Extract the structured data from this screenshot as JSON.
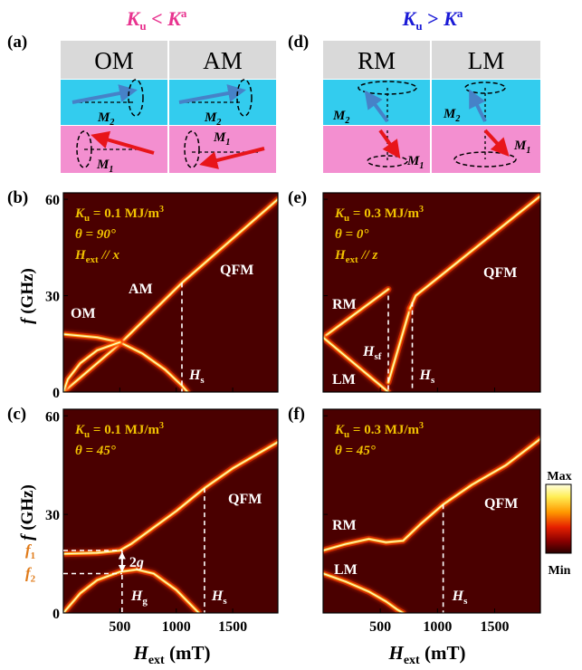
{
  "figure": {
    "left_condition": {
      "text": "K",
      "sub": "u",
      "rel": " < ",
      "text2": "K",
      "sup": "a"
    },
    "right_condition": {
      "text": "K",
      "sub": "u",
      "rel": " > ",
      "text2": "K",
      "sup": "a"
    },
    "colors": {
      "condition_left": "#e8338f",
      "condition_right": "#1a1ad6",
      "header_gray": "#d9d9d9",
      "upper_layer": "#33ccee",
      "lower_layer": "#f38fd0",
      "arrow_blue": "#4682c8",
      "arrow_red": "#e8151a",
      "annotation_yellow": "#f2c200",
      "plot_background": "#4a0000"
    }
  },
  "panels": {
    "a": {
      "label": "(a)",
      "modes": [
        {
          "name": "OM",
          "upper_moment": "M",
          "upper_sub": "2",
          "lower_moment": "M",
          "lower_sub": "1"
        },
        {
          "name": "AM",
          "upper_moment": "M",
          "upper_sub": "2",
          "lower_moment": "M",
          "lower_sub": "1"
        }
      ]
    },
    "d": {
      "label": "(d)",
      "modes": [
        {
          "name": "RM",
          "upper_moment": "M",
          "upper_sub": "2",
          "lower_moment": "M",
          "lower_sub": "1"
        },
        {
          "name": "LM",
          "upper_moment": "M",
          "upper_sub": "2",
          "lower_moment": "M",
          "lower_sub": "1"
        }
      ]
    },
    "b": {
      "label": "(b)",
      "params": [
        "K",
        "θ = 90°",
        "H"
      ],
      "ku": "0.1 MJ/m",
      "ku_exp": "3",
      "theta": "θ = 90°",
      "field_dir": " // x"
    },
    "e": {
      "label": "(e)",
      "ku": "0.3 MJ/m",
      "ku_exp": "3",
      "theta": "θ = 0°",
      "field_dir": " // z"
    },
    "c": {
      "label": "(c)",
      "ku": "0.1 MJ/m",
      "ku_exp": "3",
      "theta": "θ = 45°"
    },
    "f": {
      "label": "(f)",
      "ku": "0.3 MJ/m",
      "ku_exp": "3",
      "theta": "θ = 45°"
    }
  },
  "chart_data": [
    {
      "panel": "b",
      "type": "heatmap",
      "ylabel": "f (GHz)",
      "xlim": [
        0,
        1900
      ],
      "ylim": [
        0,
        62
      ],
      "yticks": [
        0,
        30,
        60
      ],
      "annotations": [
        "OM",
        "AM",
        "QFM",
        "H_s"
      ],
      "lines": [
        {
          "name": "QFM",
          "x": [
            0,
            500,
            1050,
            1900
          ],
          "y": [
            0,
            15,
            34,
            60
          ]
        },
        {
          "name": "OM",
          "x": [
            0,
            300,
            500,
            700,
            900,
            1050,
            1100
          ],
          "y": [
            18,
            17,
            15.5,
            12,
            7,
            2,
            0
          ]
        },
        {
          "name": "AM_low",
          "x": [
            0,
            40,
            150,
            300,
            500
          ],
          "y": [
            0,
            4,
            9,
            13,
            15.5
          ]
        }
      ],
      "markers": [
        {
          "label": "H_s",
          "x": 1050
        }
      ]
    },
    {
      "panel": "e",
      "type": "heatmap",
      "xlim": [
        0,
        1900
      ],
      "ylim": [
        0,
        62
      ],
      "yticks": [
        0,
        30,
        60
      ],
      "annotations": [
        "RM",
        "LM",
        "QFM",
        "H_sf",
        "H_s"
      ],
      "lines": [
        {
          "name": "RM",
          "x": [
            0,
            570
          ],
          "y": [
            17,
            32
          ]
        },
        {
          "name": "LM",
          "x": [
            0,
            570
          ],
          "y": [
            17,
            0
          ]
        },
        {
          "name": "mid",
          "x": [
            570,
            760
          ],
          "y": [
            3,
            26
          ]
        },
        {
          "name": "QFM",
          "x": [
            760,
            810,
            1900
          ],
          "y": [
            26,
            30,
            61
          ]
        }
      ],
      "markers": [
        {
          "label": "H_sf",
          "x": 570
        },
        {
          "label": "H_s",
          "x": 780
        }
      ]
    },
    {
      "panel": "c",
      "type": "heatmap",
      "ylabel": "f (GHz)",
      "xlabel": "H_ext (mT)",
      "xlim": [
        0,
        1900
      ],
      "ylim": [
        0,
        62
      ],
      "xticks": [
        500,
        1000,
        1500
      ],
      "yticks": [
        0,
        30,
        60
      ],
      "annotations": [
        "QFM",
        "f_1",
        "f_2",
        "2g",
        "H_g",
        "H_s"
      ],
      "lines": [
        {
          "name": "upper",
          "x": [
            0,
            300,
            500,
            600,
            800,
            1000,
            1250,
            1500,
            1900
          ],
          "y": [
            18,
            18.3,
            19,
            21,
            26,
            31,
            38,
            44,
            52
          ]
        },
        {
          "name": "lower",
          "x": [
            0,
            150,
            300,
            500,
            650,
            800,
            1000,
            1200
          ],
          "y": [
            0,
            6,
            10,
            12.5,
            13.2,
            12,
            7,
            0
          ]
        }
      ],
      "markers": [
        {
          "label": "H_g",
          "x": 520
        },
        {
          "label": "H_s",
          "x": 1250
        }
      ],
      "gap": {
        "f1": 19,
        "f2": 12,
        "label": "2g"
      }
    },
    {
      "panel": "f",
      "type": "heatmap",
      "xlabel": "H_ext (mT)",
      "xlim": [
        0,
        1900
      ],
      "ylim": [
        0,
        62
      ],
      "xticks": [
        500,
        1000,
        1500
      ],
      "yticks": [
        0,
        30,
        60
      ],
      "annotations": [
        "RM",
        "LM",
        "QFM",
        "H_s"
      ],
      "lines": [
        {
          "name": "upper",
          "x": [
            0,
            200,
            400,
            550,
            700,
            850,
            1050,
            1300,
            1600,
            1900
          ],
          "y": [
            19,
            21,
            22.5,
            21.5,
            22,
            27,
            33,
            39,
            45,
            53
          ]
        },
        {
          "name": "lower",
          "x": [
            0,
            200,
            400,
            550,
            650,
            700
          ],
          "y": [
            12,
            9.5,
            6.5,
            3.5,
            1,
            0
          ]
        }
      ],
      "markers": [
        {
          "label": "H_s",
          "x": 1050
        }
      ]
    }
  ],
  "axes": {
    "tick_labels": {
      "y0": "0",
      "y30": "30",
      "y60": "60",
      "x500": "500",
      "x1000": "1000",
      "x1500": "1500"
    },
    "ylabel_f": "f",
    "ylabel_unit": " (GHz)",
    "xlabel_h": "H",
    "xlabel_sub": "ext",
    "xlabel_unit": " (mT)"
  },
  "labels": {
    "OM": "OM",
    "AM": "AM",
    "QFM": "QFM",
    "RM": "RM",
    "LM": "LM",
    "H": "H",
    "s": "s",
    "sf": "sf",
    "g": "g",
    "ext": "ext",
    "f": "f",
    "one": "1",
    "two": "2",
    "twog": "2g",
    "K": "K",
    "u": "u",
    "eq": " = "
  },
  "colorbar": {
    "max": "Max",
    "min": "Min"
  }
}
